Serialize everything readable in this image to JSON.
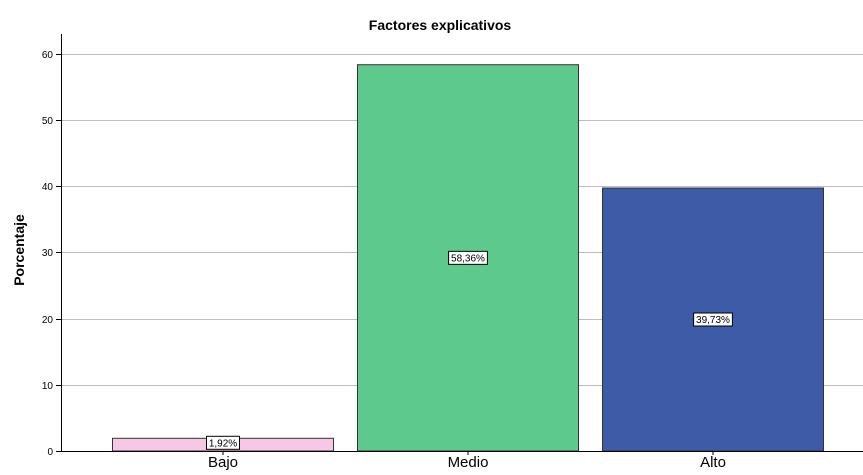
{
  "chart_data": {
    "type": "bar",
    "title": "Factores explicativos",
    "xlabel": "",
    "ylabel": "Porcentaje",
    "categories": [
      "Bajo",
      "Medio",
      "Alto"
    ],
    "values": [
      1.92,
      58.36,
      39.73
    ],
    "data_labels": [
      "1,92%",
      "58,36%",
      "39,73%"
    ],
    "colors": [
      "#f7c8e6",
      "#5ec98c",
      "#3e5ba8"
    ],
    "ylim": [
      0,
      63
    ],
    "yticks": [
      0,
      10,
      20,
      30,
      40,
      50,
      60
    ],
    "grid": true,
    "legend": "none"
  }
}
